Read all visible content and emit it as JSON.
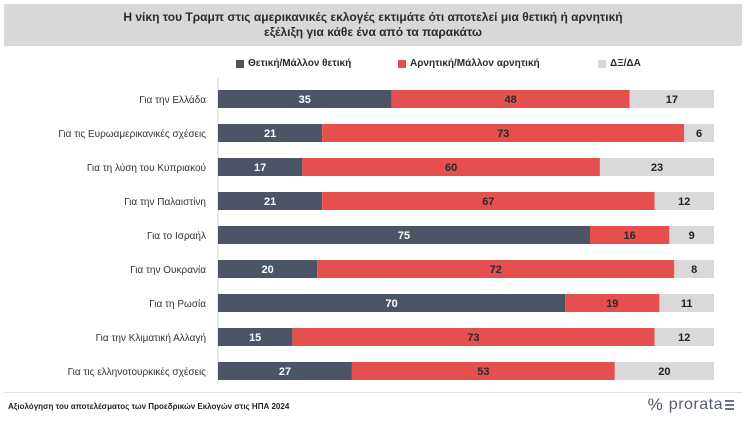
{
  "header": {
    "title_line1": "Η νίκη του Τραμπ στις αμερικανικές εκλογές εκτιμάτε ότι αποτελεί μια θετική ή αρνητική",
    "title_line2": "εξέλιξη για κάθε ένα από τα παρακάτω"
  },
  "colors": {
    "positive": "#4b5565",
    "negative": "#e5504e",
    "dk": "#d9d9d9",
    "dk_text": "#222222"
  },
  "chart_data": {
    "type": "bar",
    "orientation": "horizontal",
    "stacked": true,
    "title": "Η νίκη του Τραμπ στις αμερικανικές εκλογές εκτιμάτε ότι αποτελεί μια θετική ή αρνητική εξέλιξη για κάθε ένα από τα παρακάτω",
    "categories": [
      "Για την Ελλάδα",
      "Για τις Ευρωαμερικανικές σχέσεις",
      "Για τη λύση του Κυπριακού",
      "Για την Παλαιστίνη",
      "Για το Ισραήλ",
      "Για την Ουκρανία",
      "Για τη Ρωσία",
      "Για την Κλιματική Αλλαγή",
      "Για τις ελληνοτουρκικές σχέσεις"
    ],
    "series": [
      {
        "name": "Θετική/Μάλλον θετική",
        "values": [
          35,
          21,
          17,
          21,
          75,
          20,
          70,
          15,
          27
        ]
      },
      {
        "name": "Αρνητική/Μάλλον αρνητική",
        "values": [
          48,
          73,
          60,
          67,
          16,
          72,
          19,
          73,
          53
        ]
      },
      {
        "name": "ΔΞ/ΔΑ",
        "values": [
          17,
          6,
          23,
          12,
          9,
          8,
          11,
          12,
          20
        ]
      }
    ],
    "xlim": [
      0,
      100
    ],
    "legend": "top-center",
    "xlabel": "",
    "ylabel": ""
  },
  "footer": {
    "source": "Αξιολόγηση του αποτελέσματος των Προεδρικών Εκλογών στις ΗΠΑ 2024",
    "logo_mark": "%",
    "logo_text": "prorata"
  }
}
